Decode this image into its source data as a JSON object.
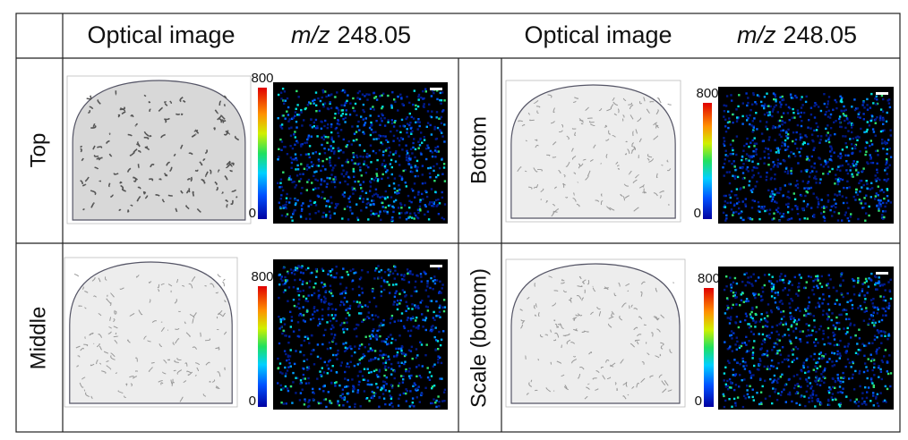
{
  "header": [
    {
      "title": "Optical image"
    },
    {
      "ion": "m/z",
      "value": 248.05
    },
    {
      "title": "Optical image"
    },
    {
      "ion": "m/z",
      "value": 248.05
    }
  ],
  "panels": [
    {
      "label": "Top",
      "colorbar": {
        "max": 800,
        "min": 0
      }
    },
    {
      "label": "Bottom",
      "colorbar": {
        "max": 800,
        "min": 0
      }
    },
    {
      "label": "Middle",
      "colorbar": {
        "max": 800,
        "min": 0
      }
    },
    {
      "label": "Scale (bottom)",
      "colorbar": {
        "max": 800,
        "min": 0
      }
    }
  ]
}
